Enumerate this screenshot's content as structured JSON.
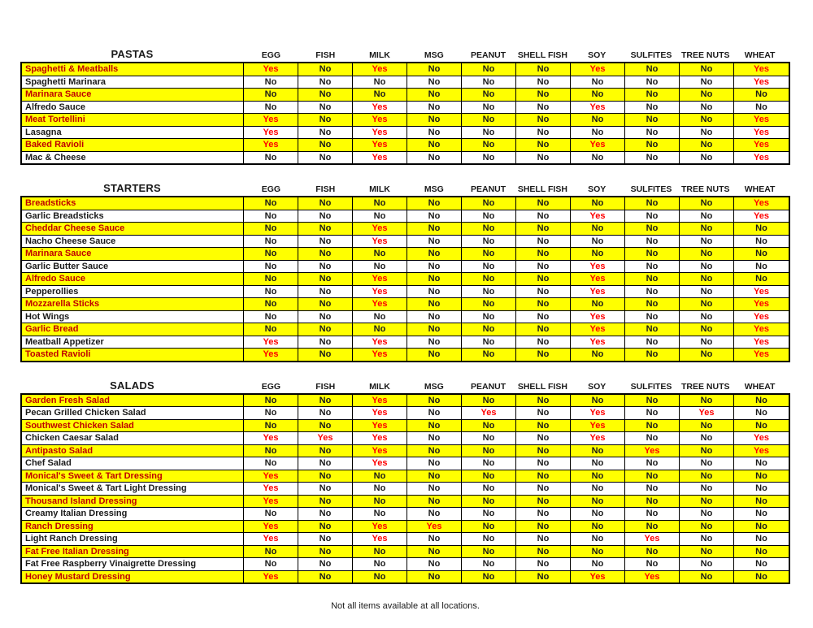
{
  "page": {
    "footer_note": "Not all items available at all locations."
  },
  "colors": {
    "row_highlight": "#FFFF00",
    "yes_text": "#FF0000",
    "highlight_item_text": "#C00000",
    "normal_text": "#1a1a1a",
    "border": "#000000"
  },
  "allergen_columns": [
    "EGG",
    "FISH",
    "MILK",
    "MSG",
    "PEANUT",
    "SHELL FISH",
    "SOY",
    "SULFITES",
    "TREE NUTS",
    "WHEAT"
  ],
  "sections": [
    {
      "title": "PASTAS",
      "rows": [
        {
          "name": "Spaghetti & Meatballs",
          "highlight": true,
          "values": [
            "Yes",
            "No",
            "Yes",
            "No",
            "No",
            "No",
            "Yes",
            "No",
            "No",
            "Yes"
          ]
        },
        {
          "name": "Spaghetti Marinara",
          "highlight": false,
          "values": [
            "No",
            "No",
            "No",
            "No",
            "No",
            "No",
            "No",
            "No",
            "No",
            "Yes"
          ]
        },
        {
          "name": "Marinara Sauce",
          "highlight": true,
          "values": [
            "No",
            "No",
            "No",
            "No",
            "No",
            "No",
            "No",
            "No",
            "No",
            "No"
          ]
        },
        {
          "name": "Alfredo Sauce",
          "highlight": false,
          "values": [
            "No",
            "No",
            "Yes",
            "No",
            "No",
            "No",
            "Yes",
            "No",
            "No",
            "No"
          ]
        },
        {
          "name": "Meat Tortellini",
          "highlight": true,
          "values": [
            "Yes",
            "No",
            "Yes",
            "No",
            "No",
            "No",
            "No",
            "No",
            "No",
            "Yes"
          ]
        },
        {
          "name": "Lasagna",
          "highlight": false,
          "values": [
            "Yes",
            "No",
            "Yes",
            "No",
            "No",
            "No",
            "No",
            "No",
            "No",
            "Yes"
          ]
        },
        {
          "name": "Baked Ravioli",
          "highlight": true,
          "values": [
            "Yes",
            "No",
            "Yes",
            "No",
            "No",
            "No",
            "Yes",
            "No",
            "No",
            "Yes"
          ]
        },
        {
          "name": "Mac & Cheese",
          "highlight": false,
          "values": [
            "No",
            "No",
            "Yes",
            "No",
            "No",
            "No",
            "No",
            "No",
            "No",
            "Yes"
          ]
        }
      ]
    },
    {
      "title": "STARTERS",
      "rows": [
        {
          "name": "Breadsticks",
          "highlight": true,
          "values": [
            "No",
            "No",
            "No",
            "No",
            "No",
            "No",
            "No",
            "No",
            "No",
            "Yes"
          ]
        },
        {
          "name": "Garlic Breadsticks",
          "highlight": false,
          "values": [
            "No",
            "No",
            "No",
            "No",
            "No",
            "No",
            "Yes",
            "No",
            "No",
            "Yes"
          ]
        },
        {
          "name": "Cheddar Cheese Sauce",
          "highlight": true,
          "values": [
            "No",
            "No",
            "Yes",
            "No",
            "No",
            "No",
            "No",
            "No",
            "No",
            "No"
          ]
        },
        {
          "name": "Nacho Cheese Sauce",
          "highlight": false,
          "values": [
            "No",
            "No",
            "Yes",
            "No",
            "No",
            "No",
            "No",
            "No",
            "No",
            "No"
          ]
        },
        {
          "name": "Marinara Sauce",
          "highlight": true,
          "values": [
            "No",
            "No",
            "No",
            "No",
            "No",
            "No",
            "No",
            "No",
            "No",
            "No"
          ]
        },
        {
          "name": "Garlic Butter Sauce",
          "highlight": false,
          "values": [
            "No",
            "No",
            "No",
            "No",
            "No",
            "No",
            "Yes",
            "No",
            "No",
            "No"
          ]
        },
        {
          "name": "Alfredo Sauce",
          "highlight": true,
          "values": [
            "No",
            "No",
            "Yes",
            "No",
            "No",
            "No",
            "Yes",
            "No",
            "No",
            "No"
          ]
        },
        {
          "name": "Pepperollies",
          "highlight": false,
          "values": [
            "No",
            "No",
            "Yes",
            "No",
            "No",
            "No",
            "Yes",
            "No",
            "No",
            "Yes"
          ]
        },
        {
          "name": "Mozzarella Sticks",
          "highlight": true,
          "values": [
            "No",
            "No",
            "Yes",
            "No",
            "No",
            "No",
            "No",
            "No",
            "No",
            "Yes"
          ]
        },
        {
          "name": "Hot Wings",
          "highlight": false,
          "values": [
            "No",
            "No",
            "No",
            "No",
            "No",
            "No",
            "Yes",
            "No",
            "No",
            "Yes"
          ]
        },
        {
          "name": "Garlic Bread",
          "highlight": true,
          "values": [
            "No",
            "No",
            "No",
            "No",
            "No",
            "No",
            "Yes",
            "No",
            "No",
            "Yes"
          ]
        },
        {
          "name": "Meatball Appetizer",
          "highlight": false,
          "values": [
            "Yes",
            "No",
            "Yes",
            "No",
            "No",
            "No",
            "Yes",
            "No",
            "No",
            "Yes"
          ]
        },
        {
          "name": "Toasted Ravioli",
          "highlight": true,
          "values": [
            "Yes",
            "No",
            "Yes",
            "No",
            "No",
            "No",
            "No",
            "No",
            "No",
            "Yes"
          ]
        }
      ]
    },
    {
      "title": "SALADS",
      "rows": [
        {
          "name": "Garden Fresh Salad",
          "highlight": true,
          "values": [
            "No",
            "No",
            "Yes",
            "No",
            "No",
            "No",
            "No",
            "No",
            "No",
            "No"
          ]
        },
        {
          "name": "Pecan Grilled Chicken Salad",
          "highlight": false,
          "values": [
            "No",
            "No",
            "Yes",
            "No",
            "Yes",
            "No",
            "Yes",
            "No",
            "Yes",
            "No"
          ]
        },
        {
          "name": "Southwest Chicken Salad",
          "highlight": true,
          "values": [
            "No",
            "No",
            "Yes",
            "No",
            "No",
            "No",
            "Yes",
            "No",
            "No",
            "No"
          ]
        },
        {
          "name": "Chicken Caesar Salad",
          "highlight": false,
          "values": [
            "Yes",
            "Yes",
            "Yes",
            "No",
            "No",
            "No",
            "Yes",
            "No",
            "No",
            "Yes"
          ]
        },
        {
          "name": "Antipasto Salad",
          "highlight": true,
          "values": [
            "No",
            "No",
            "Yes",
            "No",
            "No",
            "No",
            "No",
            "Yes",
            "No",
            "Yes"
          ]
        },
        {
          "name": "Chef Salad",
          "highlight": false,
          "values": [
            "No",
            "No",
            "Yes",
            "No",
            "No",
            "No",
            "No",
            "No",
            "No",
            "No"
          ]
        },
        {
          "name": "Monical's Sweet & Tart Dressing",
          "highlight": true,
          "values": [
            "Yes",
            "No",
            "No",
            "No",
            "No",
            "No",
            "No",
            "No",
            "No",
            "No"
          ]
        },
        {
          "name": "Monical's Sweet & Tart Light Dressing",
          "highlight": false,
          "values": [
            "Yes",
            "No",
            "No",
            "No",
            "No",
            "No",
            "No",
            "No",
            "No",
            "No"
          ]
        },
        {
          "name": "Thousand Island Dressing",
          "highlight": true,
          "values": [
            "Yes",
            "No",
            "No",
            "No",
            "No",
            "No",
            "No",
            "No",
            "No",
            "No"
          ]
        },
        {
          "name": "Creamy Italian Dressing",
          "highlight": false,
          "values": [
            "No",
            "No",
            "No",
            "No",
            "No",
            "No",
            "No",
            "No",
            "No",
            "No"
          ]
        },
        {
          "name": "Ranch Dressing",
          "highlight": true,
          "values": [
            "Yes",
            "No",
            "Yes",
            "Yes",
            "No",
            "No",
            "No",
            "No",
            "No",
            "No"
          ]
        },
        {
          "name": "Light Ranch Dressing",
          "highlight": false,
          "values": [
            "Yes",
            "No",
            "Yes",
            "No",
            "No",
            "No",
            "No",
            "Yes",
            "No",
            "No"
          ]
        },
        {
          "name": "Fat Free Italian Dressing",
          "highlight": true,
          "values": [
            "No",
            "No",
            "No",
            "No",
            "No",
            "No",
            "No",
            "No",
            "No",
            "No"
          ]
        },
        {
          "name": "Fat Free Raspberry Vinaigrette Dressing",
          "highlight": false,
          "values": [
            "No",
            "No",
            "No",
            "No",
            "No",
            "No",
            "No",
            "No",
            "No",
            "No"
          ]
        },
        {
          "name": "Honey Mustard Dressing",
          "highlight": true,
          "values": [
            "Yes",
            "No",
            "No",
            "No",
            "No",
            "No",
            "Yes",
            "Yes",
            "No",
            "No"
          ]
        }
      ]
    }
  ]
}
